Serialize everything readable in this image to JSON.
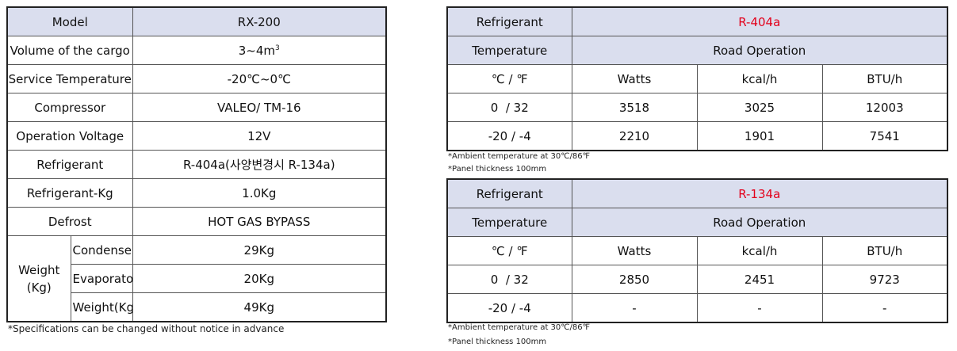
{
  "spec": {
    "model_label": "Model",
    "model_value": "RX-200",
    "volume_label": "Volume of the cargo",
    "volume_value": "3~4m",
    "volume_unit_sup": "3",
    "service_temp_label": "Service Temperature",
    "service_temp_value": "-20℃~0℃",
    "compressor_label": "Compressor",
    "compressor_value": "VALEO/ TM-16",
    "voltage_label": "Operation Voltage",
    "voltage_value": "12V",
    "refrigerant_label": "Refrigerant",
    "refrigerant_value": "R-404a(사양변경시 R-134a)",
    "refrigerant_kg_label": "Refrigerant-Kg",
    "refrigerant_kg_value": "1.0Kg",
    "defrost_label": "Defrost",
    "defrost_value": "HOT GAS BYPASS",
    "weight_label_line1": "Weight",
    "weight_label_line2": "(Kg)",
    "condenser_label": "Condenser",
    "condenser_value": "29Kg",
    "evaporator_label": "Evaporator",
    "evaporator_value": "20Kg",
    "weight_total_label": "Weight(Kg)",
    "weight_total_value": "49Kg",
    "footnote": "*Specifications can be changed without notice in advance"
  },
  "capacity_tables": [
    {
      "refrigerant_label": "Refrigerant",
      "refrigerant_value": "R-404a",
      "temperature_label": "Temperature",
      "operation_label": "Road Operation",
      "columns": [
        "℃ / ℉",
        "Watts",
        "kcal/h",
        "BTU/h"
      ],
      "rows": [
        [
          "0  / 32",
          "3518",
          "3025",
          "12003"
        ],
        [
          "-20 / -4",
          "2210",
          "1901",
          "7541"
        ]
      ],
      "note1": "*Ambient temperature at 30℃/86℉",
      "note2": "*Panel thickness 100mm"
    },
    {
      "refrigerant_label": "Refrigerant",
      "refrigerant_value": "R-134a",
      "temperature_label": "Temperature",
      "operation_label": "Road Operation",
      "columns": [
        "℃ / ℉",
        "Watts",
        "kcal/h",
        "BTU/h"
      ],
      "rows": [
        [
          "0  / 32",
          "2850",
          "2451",
          "9723"
        ],
        [
          "-20 / -4",
          "-",
          "-",
          "-"
        ]
      ],
      "note1": "*Ambient temperature at 30℃/86℉",
      "note2": "*Panel thickness 100mm"
    }
  ],
  "colors": {
    "header_bg": "#dadeee",
    "refrigerant_accent": "#e3001b",
    "border": "#555555"
  }
}
